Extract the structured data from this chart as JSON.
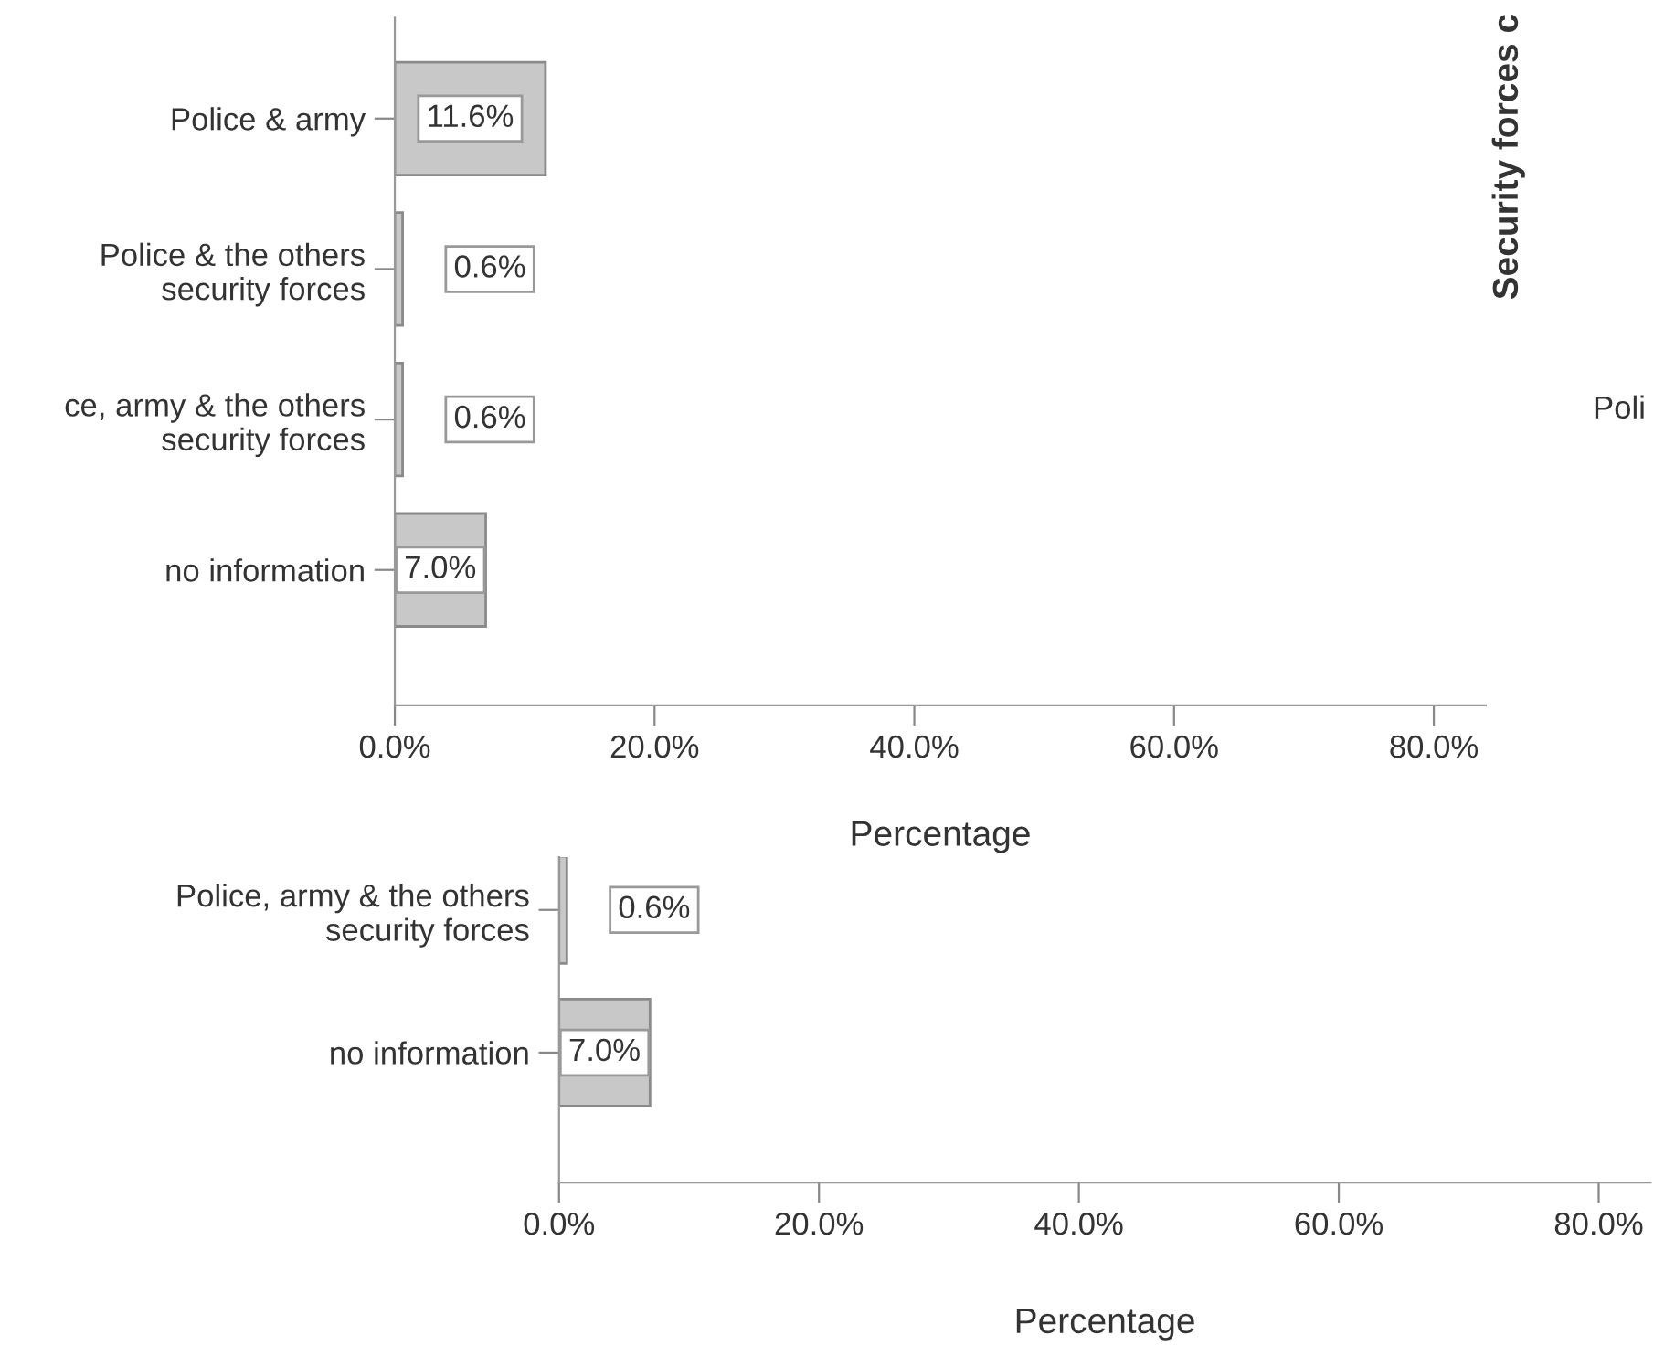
{
  "chart_data": [
    {
      "type": "bar",
      "orientation": "horizontal",
      "xlabel": "Percentage",
      "categories": [
        "Police & army",
        "Police & the others\nsecurity forces",
        "ce, army & the others\nsecurity forces",
        "no information"
      ],
      "values": [
        11.6,
        0.6,
        0.6,
        7.0
      ],
      "color": "#c8c8c8",
      "value_labels": [
        "11.6%",
        "0.6%",
        "0.6%",
        "7.0%"
      ],
      "xlim": [
        0,
        84
      ],
      "xticks": [
        {
          "value": 0,
          "label": "0.0%"
        },
        {
          "value": 20,
          "label": "20.0%"
        },
        {
          "value": 40,
          "label": "40.0%"
        },
        {
          "value": 60,
          "label": "60.0%"
        },
        {
          "value": 80,
          "label": "80.0%"
        }
      ],
      "annotations": [
        "Security forces c",
        "Poli"
      ],
      "grid": false,
      "legend": false
    },
    {
      "type": "bar",
      "orientation": "horizontal",
      "xlabel": "Percentage",
      "categories": [
        "Police, army & the others\nsecurity forces",
        "no information"
      ],
      "values": [
        0.6,
        7.0
      ],
      "color": "#c8c8c8",
      "value_labels": [
        "0.6%",
        "7.0%"
      ],
      "xlim": [
        0,
        84
      ],
      "xticks": [
        {
          "value": 0,
          "label": "0.0%"
        },
        {
          "value": 20,
          "label": "20.0%"
        },
        {
          "value": 40,
          "label": "40.0%"
        },
        {
          "value": 60,
          "label": "60.0%"
        },
        {
          "value": 80,
          "label": "80.0%"
        }
      ],
      "grid": false,
      "legend": false
    }
  ]
}
